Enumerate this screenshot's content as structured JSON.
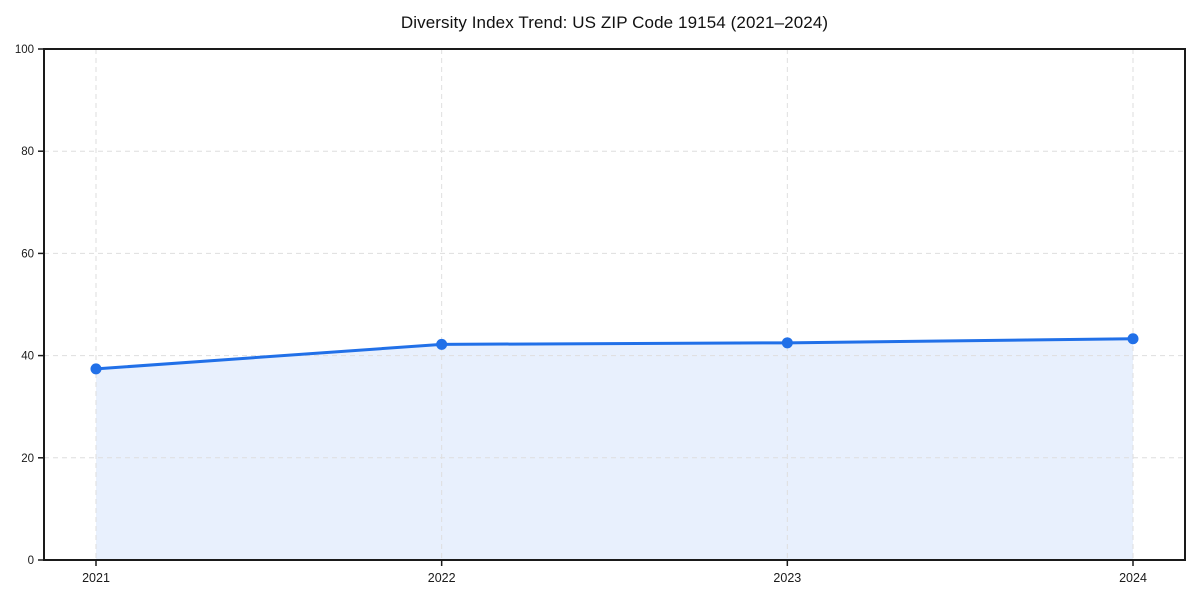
{
  "chart_data": {
    "type": "area",
    "title": "Diversity Index Trend: US ZIP Code 19154 (2021–2024)",
    "x": [
      2021,
      2022,
      2023,
      2024
    ],
    "values": [
      37.4,
      42.2,
      42.5,
      43.3
    ],
    "xtick_labels": [
      "2021",
      "2022",
      "2023",
      "2024"
    ],
    "yticks": [
      0,
      20,
      40,
      60,
      80,
      100
    ],
    "ylim": [
      0,
      100
    ],
    "xlabel": "",
    "ylabel": "",
    "legend": false,
    "grid": true,
    "grid_style": "dashed",
    "marker": "circle",
    "colors": {
      "line": "#2170e8",
      "marker": "#2170e8",
      "fill": "#2170e8",
      "fill_opacity": 0.1,
      "grid": "#dedede",
      "spine": "#1a1a1a",
      "tick_text": "#1a1a1a",
      "background": "#ffffff"
    }
  }
}
